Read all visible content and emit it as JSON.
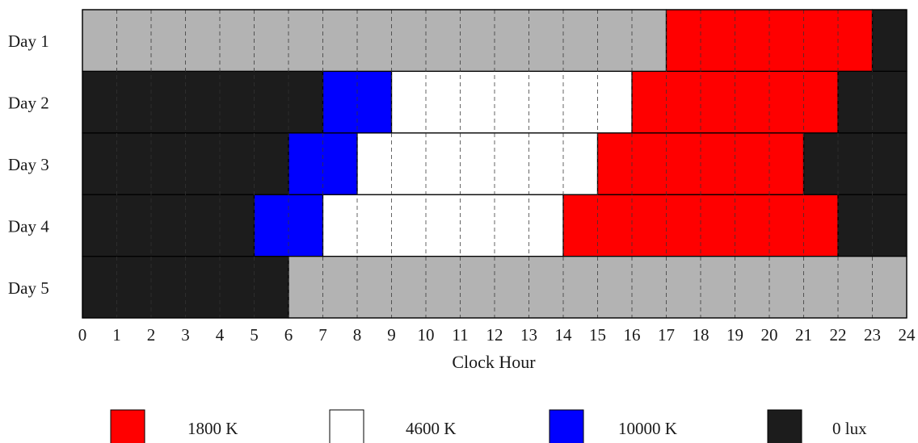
{
  "chart_data": {
    "type": "heatmap",
    "xlabel": "Clock Hour",
    "xlim": [
      0,
      24
    ],
    "x_ticks": [
      0,
      1,
      2,
      3,
      4,
      5,
      6,
      7,
      8,
      9,
      10,
      11,
      12,
      13,
      14,
      15,
      16,
      17,
      18,
      19,
      20,
      21,
      22,
      23,
      24
    ],
    "grid": true,
    "legend_placement": "bottom",
    "rows": [
      {
        "label": "Day 1",
        "segments": [
          {
            "start": 0,
            "end": 17,
            "category": "none"
          },
          {
            "start": 17,
            "end": 23,
            "category": "1800 K"
          },
          {
            "start": 23,
            "end": 24,
            "category": "0 lux"
          }
        ]
      },
      {
        "label": "Day 2",
        "segments": [
          {
            "start": 0,
            "end": 7,
            "category": "0 lux"
          },
          {
            "start": 7,
            "end": 9,
            "category": "10000 K"
          },
          {
            "start": 9,
            "end": 16,
            "category": "4600 K"
          },
          {
            "start": 16,
            "end": 22,
            "category": "1800 K"
          },
          {
            "start": 22,
            "end": 24,
            "category": "0 lux"
          }
        ]
      },
      {
        "label": "Day 3",
        "segments": [
          {
            "start": 0,
            "end": 6,
            "category": "0 lux"
          },
          {
            "start": 6,
            "end": 8,
            "category": "10000 K"
          },
          {
            "start": 8,
            "end": 15,
            "category": "4600 K"
          },
          {
            "start": 15,
            "end": 21,
            "category": "1800 K"
          },
          {
            "start": 21,
            "end": 24,
            "category": "0 lux"
          }
        ]
      },
      {
        "label": "Day 4",
        "segments": [
          {
            "start": 0,
            "end": 5,
            "category": "0 lux"
          },
          {
            "start": 5,
            "end": 7,
            "category": "10000 K"
          },
          {
            "start": 7,
            "end": 14,
            "category": "4600 K"
          },
          {
            "start": 14,
            "end": 22,
            "category": "1800 K"
          },
          {
            "start": 22,
            "end": 24,
            "category": "0 lux"
          }
        ]
      },
      {
        "label": "Day 5",
        "segments": [
          {
            "start": 0,
            "end": 6,
            "category": "0 lux"
          },
          {
            "start": 6,
            "end": 24,
            "category": "none"
          }
        ]
      }
    ],
    "legend": [
      {
        "label": "1800 K",
        "color": "#ff0000"
      },
      {
        "label": "4600 K",
        "color": "#ffffff"
      },
      {
        "label": "10000 K",
        "color": "#0000ff"
      },
      {
        "label": "0 lux",
        "color": "#1c1c1c"
      }
    ],
    "colors": {
      "1800 K": "#ff0000",
      "4600 K": "#ffffff",
      "10000 K": "#0000ff",
      "0 lux": "#1c1c1c",
      "none": "#b3b3b3"
    }
  }
}
